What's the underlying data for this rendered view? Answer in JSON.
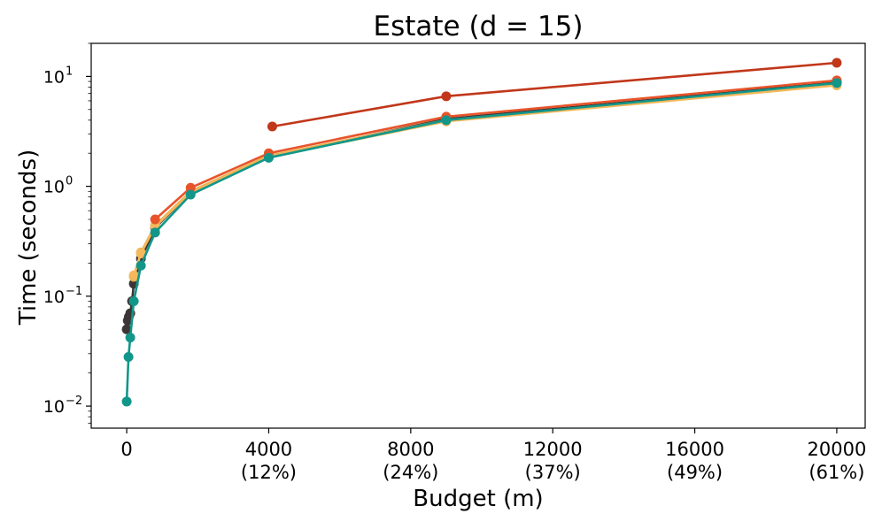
{
  "chart_data": {
    "type": "line",
    "title": "Estate (d = 15)",
    "xlabel": "Budget (m)",
    "ylabel": "Time (seconds)",
    "yscale": "log",
    "xlim": [
      -1000,
      20800
    ],
    "ylim": [
      0.0063,
      20
    ],
    "grid": false,
    "xticks": [
      {
        "value": 0,
        "label": "0",
        "sub": ""
      },
      {
        "value": 4000,
        "label": "4000",
        "sub": "(12%)"
      },
      {
        "value": 8000,
        "label": "8000",
        "sub": "(24%)"
      },
      {
        "value": 12000,
        "label": "12000",
        "sub": "(37%)"
      },
      {
        "value": 16000,
        "label": "16000",
        "sub": "(49%)"
      },
      {
        "value": 20000,
        "label": "20000",
        "sub": "(61%)"
      }
    ],
    "yticks": [
      {
        "value": 0.01,
        "base": "10",
        "exp": "−2"
      },
      {
        "value": 0.1,
        "base": "10",
        "exp": "−1"
      },
      {
        "value": 1,
        "base": "10",
        "exp": "0"
      },
      {
        "value": 10,
        "base": "10",
        "exp": "1"
      }
    ],
    "series": [
      {
        "color": "#3d3535",
        "x": [
          0,
          30,
          60,
          100,
          150,
          200,
          400,
          800,
          1800,
          4000,
          9000,
          20000
        ],
        "y": [
          0.05,
          0.06,
          0.065,
          0.07,
          0.09,
          0.13,
          0.22,
          0.42,
          0.88,
          1.85,
          4.1,
          8.8
        ]
      },
      {
        "color": "#e8b04d",
        "x": [
          200,
          400,
          800,
          1800,
          4000,
          9000,
          20000
        ],
        "y": [
          0.15,
          0.25,
          0.44,
          0.9,
          1.9,
          4.0,
          8.5
        ]
      },
      {
        "color": "#f5b85a",
        "x": [
          200,
          400,
          800,
          1800,
          4000,
          9000,
          20000
        ],
        "y": [
          0.155,
          0.245,
          0.43,
          0.88,
          1.85,
          3.9,
          8.3
        ]
      },
      {
        "color": "#e8542a",
        "x": [
          800,
          1800,
          4000,
          9000,
          20000
        ],
        "y": [
          0.5,
          0.97,
          2.0,
          4.3,
          9.2
        ]
      },
      {
        "color": "#c1371a",
        "x": [
          4100,
          9000,
          20000
        ],
        "y": [
          3.5,
          6.6,
          13.3
        ]
      },
      {
        "color": "#12968a",
        "x": [
          0,
          50,
          100,
          200,
          400,
          800,
          1800,
          4000,
          9000,
          20000
        ],
        "y": [
          0.011,
          0.028,
          0.042,
          0.09,
          0.19,
          0.38,
          0.84,
          1.82,
          4.0,
          8.7
        ]
      }
    ]
  }
}
